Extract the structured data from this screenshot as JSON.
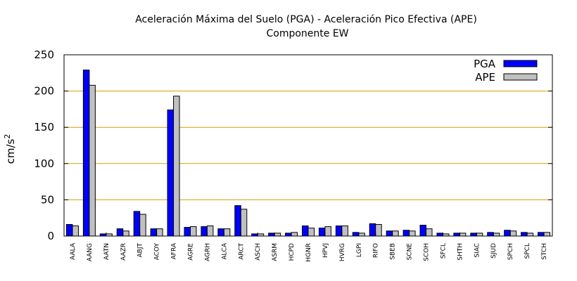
{
  "chart_data": {
    "type": "bar",
    "title": "Aceleración Máxima del Suelo (PGA) -  Aceleración Pico Efectiva (APE)",
    "subtitle": "Componente EW",
    "xlabel": "",
    "ylabel": "cm/s",
    "ylabel_superscript": "2",
    "ylim": [
      0,
      250
    ],
    "yticks": [
      "0",
      "50",
      "100",
      "150",
      "200",
      "250"
    ],
    "grid": "horizontal",
    "legend_position": "top-right",
    "categories": [
      "AALA",
      "AANG",
      "AATN",
      "AAZR",
      "ABJT",
      "ACOY",
      "AFRA",
      "AGRE",
      "AGRH",
      "ALCA",
      "ARCT",
      "ASCH",
      "ASRM",
      "HCPD",
      "HGNR",
      "HPVJ",
      "HVRG",
      "LGPI",
      "RIFO",
      "SBEB",
      "SCNE",
      "SCOH",
      "SFCL",
      "SHTH",
      "SIAC",
      "SJUD",
      "SPCH",
      "SPCL",
      "STCH"
    ],
    "series": [
      {
        "name": "PGA",
        "color": "#0000ff",
        "values": [
          16,
          229,
          3,
          10,
          34,
          10,
          174,
          12,
          13,
          10,
          42,
          3,
          4,
          4,
          14,
          11,
          14,
          5,
          17,
          7,
          8,
          15,
          4,
          4,
          4,
          5,
          8,
          5,
          5
        ]
      },
      {
        "name": "APE",
        "color": "#c0c0c0",
        "values": [
          14,
          208,
          3,
          7,
          30,
          10,
          193,
          13,
          14,
          10,
          37,
          3,
          4,
          5,
          11,
          13,
          14,
          4,
          16,
          7,
          7,
          10,
          3,
          4,
          4,
          4,
          7,
          4,
          5
        ]
      }
    ]
  }
}
